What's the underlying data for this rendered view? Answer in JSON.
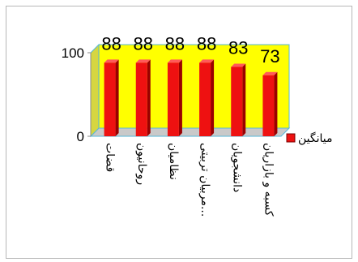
{
  "chart_data": {
    "type": "bar",
    "categories": [
      "قضات",
      "روحانیون",
      "نظامیان",
      "مربیان تربیتی...",
      "دانشجویان",
      "کسبه و بازاریان"
    ],
    "series": [
      {
        "name": "میانگین",
        "values": [
          88,
          88,
          88,
          88,
          83,
          73
        ]
      }
    ],
    "data_labels": [
      "88",
      "88",
      "88",
      "88",
      "83",
      "73"
    ],
    "y_ticks": [
      "0",
      "100"
    ],
    "ylim": [
      0,
      100
    ],
    "legend": {
      "label": "میانگین",
      "position": "right"
    },
    "grid": false,
    "colors": {
      "bar": "#ee1111",
      "bar_shade": "#9a0000",
      "back_wall": "#ffff00",
      "side_wall": "#d6d640",
      "floor": "#c9c9c9",
      "axis": "#8a8a8a",
      "outline": "#55b7d9",
      "legend_swatch": "#ee1111"
    }
  }
}
